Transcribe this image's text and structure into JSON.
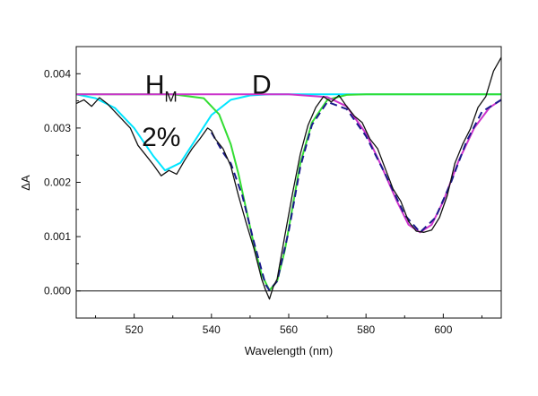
{
  "chart_data": {
    "type": "line",
    "xlabel": "Wavelength (nm)",
    "ylabel": "ΔA",
    "xlim": [
      505,
      615
    ],
    "ylim": [
      -0.0005,
      0.0045
    ],
    "x_ticks": [
      520,
      540,
      560,
      580,
      600
    ],
    "x_tick_labels": [
      "520",
      "540",
      "560",
      "580",
      "600"
    ],
    "y_ticks": [
      0.0,
      0.001,
      0.002,
      0.003,
      0.004
    ],
    "y_tick_labels": [
      "0.000",
      "0.001",
      "0.002",
      "0.003",
      "0.004"
    ],
    "zero_line": 0,
    "grid": false,
    "annotations": [
      {
        "text": "H",
        "subscript": "M",
        "x": 527,
        "y": 0.0038
      },
      {
        "text": "D",
        "x": 553,
        "y": 0.0038
      },
      {
        "text": "2%",
        "x": 527,
        "y": 0.00283
      }
    ],
    "series": [
      {
        "color": "#00e5ff",
        "x": [
          505,
          510,
          515,
          520,
          525,
          528,
          532,
          536,
          540,
          545,
          550,
          555,
          560,
          565,
          570,
          575,
          580,
          590,
          600,
          615
        ],
        "y": [
          0.00362,
          0.00355,
          0.00337,
          0.003,
          0.00248,
          0.00222,
          0.00236,
          0.0028,
          0.00324,
          0.00352,
          0.0036,
          0.00362,
          0.00362,
          0.00362,
          0.00362,
          0.00362,
          0.00362,
          0.00362,
          0.00362,
          0.00362
        ]
      },
      {
        "color": "#33dd33",
        "x": [
          505,
          530,
          538,
          542,
          545,
          547,
          549,
          551,
          553,
          555,
          557,
          559,
          561,
          563,
          566,
          570,
          575,
          580,
          600,
          615
        ],
        "y": [
          0.00362,
          0.00362,
          0.00355,
          0.00325,
          0.0027,
          0.00215,
          0.0015,
          0.00085,
          0.0003,
          1e-05,
          0.00018,
          0.00075,
          0.00155,
          0.00235,
          0.0031,
          0.00352,
          0.00361,
          0.00362,
          0.00362,
          0.00362
        ]
      },
      {
        "color": "#cc33cc",
        "x": [
          505,
          540,
          560,
          570,
          575,
          580,
          584,
          588,
          591,
          594,
          597,
          600,
          604,
          608,
          612,
          615
        ],
        "y": [
          0.00362,
          0.00362,
          0.00362,
          0.00357,
          0.0034,
          0.0029,
          0.0023,
          0.00165,
          0.00122,
          0.00108,
          0.00122,
          0.00165,
          0.0024,
          0.003,
          0.00338,
          0.00352
        ]
      },
      {
        "color": "#1a1a8c",
        "dashed": true,
        "x": [
          540,
          543,
          545,
          548,
          551,
          554,
          555,
          557,
          560,
          563,
          566,
          570,
          575,
          580,
          585,
          590,
          594,
          598,
          602,
          606,
          610,
          615
        ],
        "y": [
          0.00292,
          0.00255,
          0.00235,
          0.00175,
          0.0009,
          0.00012,
          1e-05,
          0.00018,
          0.0011,
          0.00228,
          0.00306,
          0.00348,
          0.00335,
          0.00285,
          0.00215,
          0.0014,
          0.00108,
          0.00135,
          0.002,
          0.00275,
          0.0033,
          0.00352
        ]
      },
      {
        "color": "#111111",
        "x": [
          505,
          507,
          509,
          511,
          513,
          515,
          517,
          519,
          521,
          523,
          525,
          527,
          529,
          531,
          533,
          535,
          537,
          539,
          540,
          541,
          543,
          545,
          547,
          549,
          551,
          553,
          554,
          555,
          556,
          557,
          559,
          561,
          563,
          565,
          567,
          569,
          571,
          573,
          575,
          577,
          579,
          581,
          583,
          585,
          587,
          589,
          591,
          593,
          595,
          597,
          599,
          601,
          603,
          605,
          607,
          609,
          611,
          613,
          615
        ],
        "y": [
          0.00345,
          0.00352,
          0.0034,
          0.00356,
          0.00345,
          0.0033,
          0.00315,
          0.003,
          0.00268,
          0.0025,
          0.00232,
          0.00212,
          0.00222,
          0.00215,
          0.0024,
          0.00262,
          0.0028,
          0.003,
          0.00295,
          0.0028,
          0.00262,
          0.0023,
          0.00175,
          0.00125,
          0.00078,
          0.00022,
          2e-05,
          -0.00015,
          8e-05,
          0.00022,
          0.00102,
          0.0018,
          0.00252,
          0.00305,
          0.00338,
          0.00358,
          0.00348,
          0.0036,
          0.0034,
          0.00322,
          0.0031,
          0.0028,
          0.00262,
          0.00225,
          0.00188,
          0.00165,
          0.00128,
          0.0011,
          0.00108,
          0.00112,
          0.00135,
          0.00175,
          0.00235,
          0.0027,
          0.00298,
          0.00338,
          0.00358,
          0.00405,
          0.0043
        ]
      }
    ]
  }
}
